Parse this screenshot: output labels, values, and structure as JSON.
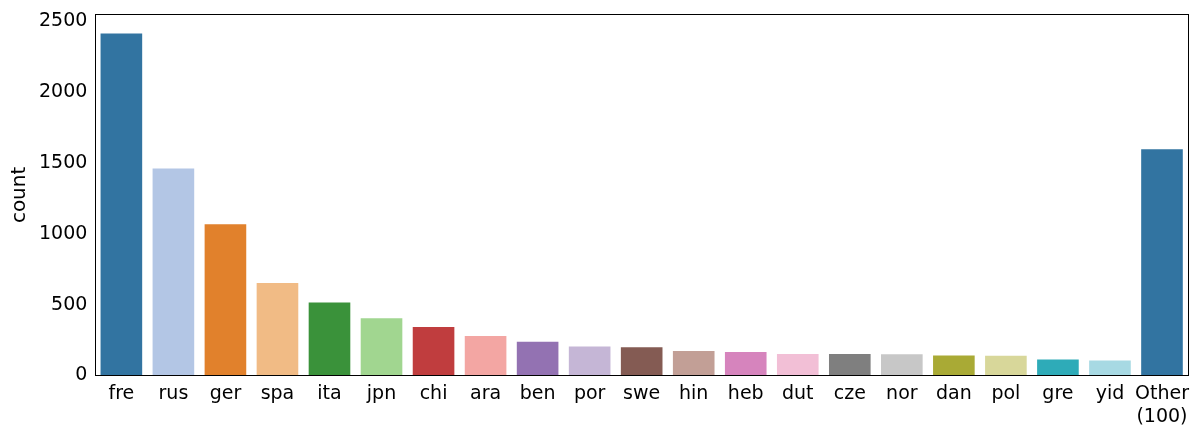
{
  "chart_data": {
    "type": "bar",
    "categories": [
      "fre",
      "rus",
      "ger",
      "spa",
      "ita",
      "jpn",
      "chi",
      "ara",
      "ben",
      "por",
      "swe",
      "hin",
      "heb",
      "dut",
      "cze",
      "nor",
      "dan",
      "pol",
      "gre",
      "yid",
      "Other\n(100)"
    ],
    "values": [
      2415,
      1462,
      1068,
      652,
      515,
      403,
      342,
      278,
      238,
      205,
      198,
      172,
      165,
      152,
      152,
      150,
      140,
      138,
      113,
      105,
      1598
    ],
    "colors": [
      "#3274a1",
      "#b3c6e5",
      "#e1812c",
      "#f1bb85",
      "#3a923a",
      "#a1d690",
      "#c03d3e",
      "#f3a6a3",
      "#9372b2",
      "#c5b6d6",
      "#845b53",
      "#c29f96",
      "#d684bd",
      "#f2bfd6",
      "#7f7f7f",
      "#c7c7c7",
      "#a9aa35",
      "#d8d79a",
      "#2eabb8",
      "#a7d9e3",
      "#3274a1"
    ],
    "y_label": "count",
    "ylim": [
      0,
      2550
    ],
    "yticks": [
      0,
      500,
      1000,
      1500,
      2000,
      2500
    ],
    "grid": false
  }
}
